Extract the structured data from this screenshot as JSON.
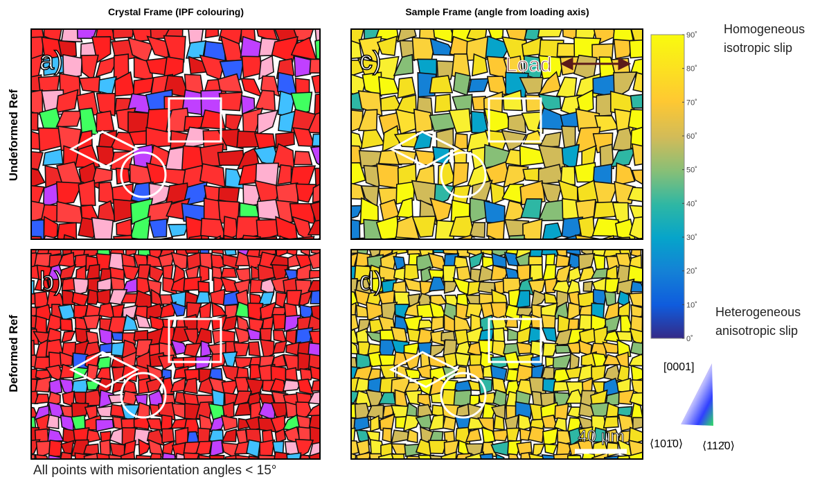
{
  "columns": {
    "left": "Crystal Frame (IPF colouring)",
    "right": "Sample Frame (angle from loading axis)"
  },
  "rows": {
    "top": "Undeformed Ref",
    "bottom": "Deformed Ref"
  },
  "panels": [
    {
      "label": "a)"
    },
    {
      "label": "b)"
    },
    {
      "label": "c)"
    },
    {
      "label": "d)"
    }
  ],
  "load_label": "Load",
  "scale_bar": "40 μm",
  "colorbar": {
    "ticks": [
      "0˚",
      "10˚",
      "20˚",
      "30˚",
      "40˚",
      "50˚",
      "60˚",
      "70˚",
      "80˚",
      "90˚"
    ],
    "top_note": [
      "Homogeneous",
      "isotropic slip"
    ],
    "bottom_note": [
      "Heterogeneous",
      "anisotropic slip"
    ]
  },
  "ipf": {
    "top": "[0001]",
    "left": "⟨101̄0⟩",
    "right": "⟨112̄0⟩"
  },
  "footer": "All points with misorientation angles < 15°"
}
